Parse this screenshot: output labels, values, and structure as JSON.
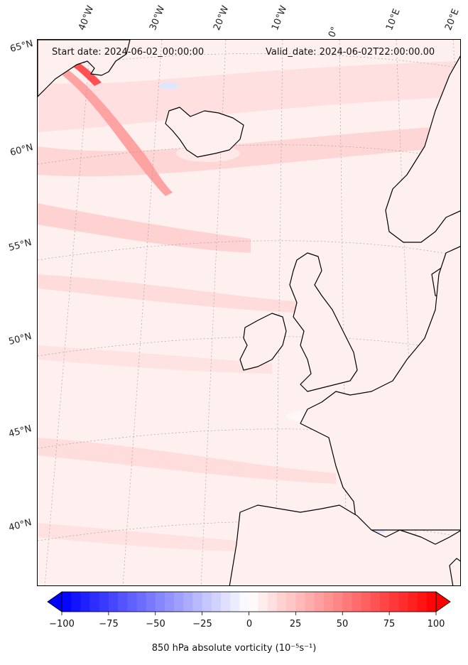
{
  "header": {
    "start_date": "Start date: 2024-06-02_00:00:00",
    "valid_date": "Valid_date: 2024-06-02T22:00:00.00"
  },
  "longitude_labels": [
    "40°W",
    "30°W",
    "20°W",
    "10°W",
    "0°",
    "10°E",
    "20°E"
  ],
  "latitude_labels": [
    "65°N",
    "60°N",
    "55°N",
    "50°N",
    "45°N",
    "40°N"
  ],
  "colorbar": {
    "ticks": [
      "−100",
      "−75",
      "−50",
      "−25",
      "0",
      "25",
      "50",
      "75",
      "100"
    ],
    "label": "850 hPa absolute vorticity (10⁻⁵s⁻¹)",
    "min": -100,
    "max": 100,
    "colormap": "bwr",
    "extend": "both",
    "low_color": "#0000ff",
    "mid_color": "#ffffff",
    "high_color": "#ff0000"
  },
  "map": {
    "projection": "polar stereographic",
    "background_color": "#fff0f0",
    "coastline_color": "#000000",
    "gridlines": "dotted"
  }
}
